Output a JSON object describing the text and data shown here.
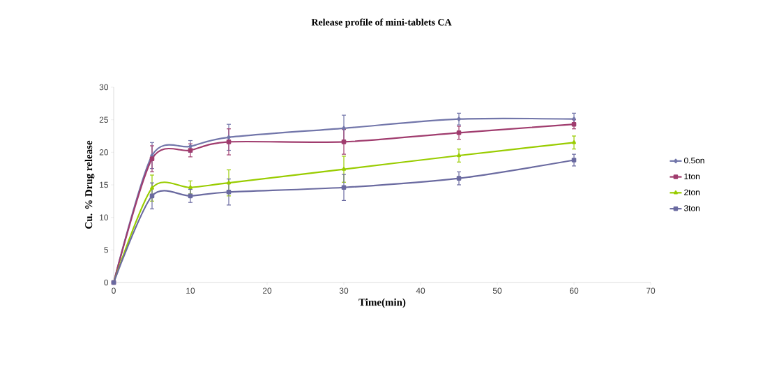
{
  "chart_data": {
    "type": "line",
    "title": "Release profile of  mini-tablets CA",
    "xlabel": "Time(min)",
    "ylabel": "Cu. % Drug release",
    "x": [
      0,
      5,
      10,
      15,
      30,
      45,
      60
    ],
    "xlim": [
      0,
      70
    ],
    "xticks": [
      0,
      10,
      20,
      30,
      40,
      50,
      60,
      70
    ],
    "ylim": [
      0,
      30
    ],
    "yticks": [
      0,
      5,
      10,
      15,
      20,
      25,
      30
    ],
    "grid": false,
    "legend": "right",
    "line_style": "solid",
    "series": [
      {
        "name": "0.5on",
        "color": "#7276aa",
        "marker": "diamond",
        "values": [
          0,
          19.5,
          20.9,
          22.3,
          23.7,
          25.1,
          25.1
        ],
        "errors": [
          0,
          2,
          0.9,
          2,
          2,
          0.9,
          0.9
        ]
      },
      {
        "name": "1ton",
        "color": "#a03c6e",
        "marker": "square",
        "values": [
          0,
          19.0,
          20.3,
          21.6,
          21.6,
          23.0,
          24.3
        ],
        "errors": [
          0,
          2,
          1,
          2,
          1.9,
          1,
          0.7
        ]
      },
      {
        "name": "2ton",
        "color": "#99cc00",
        "marker": "triangle",
        "values": [
          0,
          14.5,
          14.6,
          15.3,
          17.4,
          19.5,
          21.5
        ],
        "errors": [
          0,
          2,
          1,
          2,
          2,
          1,
          1
        ]
      },
      {
        "name": "3ton",
        "color": "#6a6aa0",
        "marker": "square",
        "values": [
          0,
          13.3,
          13.3,
          13.9,
          14.6,
          16.0,
          18.8
        ],
        "errors": [
          0,
          2,
          1,
          2,
          2,
          1,
          0.9
        ]
      }
    ]
  }
}
